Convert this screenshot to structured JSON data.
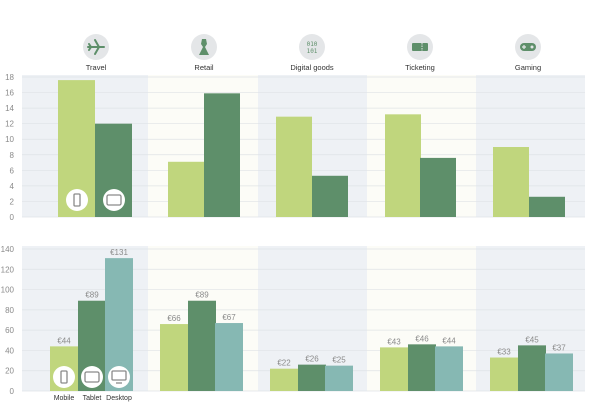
{
  "colors": {
    "mobile": "#c0d67d",
    "tablet": "#5e8f6a",
    "desktop": "#86b8b3",
    "band_shade": "#eef1f5",
    "band_light": "#fcfcf7",
    "icon_circle": "#e4e6e8",
    "icon_fill": "#5e8f6a",
    "grid": "#dfe3e6",
    "device_icon_circle": "#ffffff",
    "device_icon_stroke": "#8a8a8a"
  },
  "categories": [
    {
      "label": "Travel",
      "icon": "airplane-icon"
    },
    {
      "label": "Retail",
      "icon": "dress-icon"
    },
    {
      "label": "Digital goods",
      "icon": "binary-digits-icon"
    },
    {
      "label": "Ticketing",
      "icon": "ticket-icon"
    },
    {
      "label": "Gaming",
      "icon": "gamepad-icon"
    }
  ],
  "devices": [
    {
      "label": "Mobile",
      "icon": "mobile-phone-icon"
    },
    {
      "label": "Tablet",
      "icon": "tablet-icon"
    },
    {
      "label": "Desktop",
      "icon": "desktop-monitor-icon"
    }
  ],
  "chart_data": [
    {
      "type": "bar",
      "categories": [
        "Travel",
        "Retail",
        "Digital goods",
        "Ticketing",
        "Gaming"
      ],
      "series": [
        {
          "values": [
            17.6,
            7.1,
            12.9,
            13.2,
            9.0
          ]
        },
        {
          "values": [
            12.0,
            15.9,
            5.3,
            7.6,
            2.6
          ]
        }
      ],
      "ylim": [
        0,
        18
      ],
      "yticks": [
        "0",
        "2",
        "4",
        "6",
        "8",
        "10",
        "12",
        "14",
        "16",
        "18"
      ],
      "grid": true
    },
    {
      "type": "bar",
      "categories": [
        "Travel",
        "Retail",
        "Digital goods",
        "Ticketing",
        "Gaming"
      ],
      "series": [
        {
          "name": "Mobile",
          "values": [
            44,
            66,
            22,
            43,
            33
          ],
          "labels": [
            "€44",
            "€66",
            "€22",
            "€43",
            "€33"
          ]
        },
        {
          "name": "Tablet",
          "values": [
            89,
            89,
            26,
            46,
            45
          ],
          "labels": [
            "€89",
            "€89",
            "€26",
            "€46",
            "€45"
          ]
        },
        {
          "name": "Desktop",
          "values": [
            131,
            67,
            25,
            44,
            37
          ],
          "labels": [
            "€131",
            "€67",
            "€25",
            "€44",
            "€37"
          ]
        }
      ],
      "ylim": [
        0,
        140
      ],
      "yticks": [
        "0",
        "20",
        "40",
        "60",
        "80",
        "100",
        "120",
        "140"
      ],
      "grid": true
    }
  ]
}
